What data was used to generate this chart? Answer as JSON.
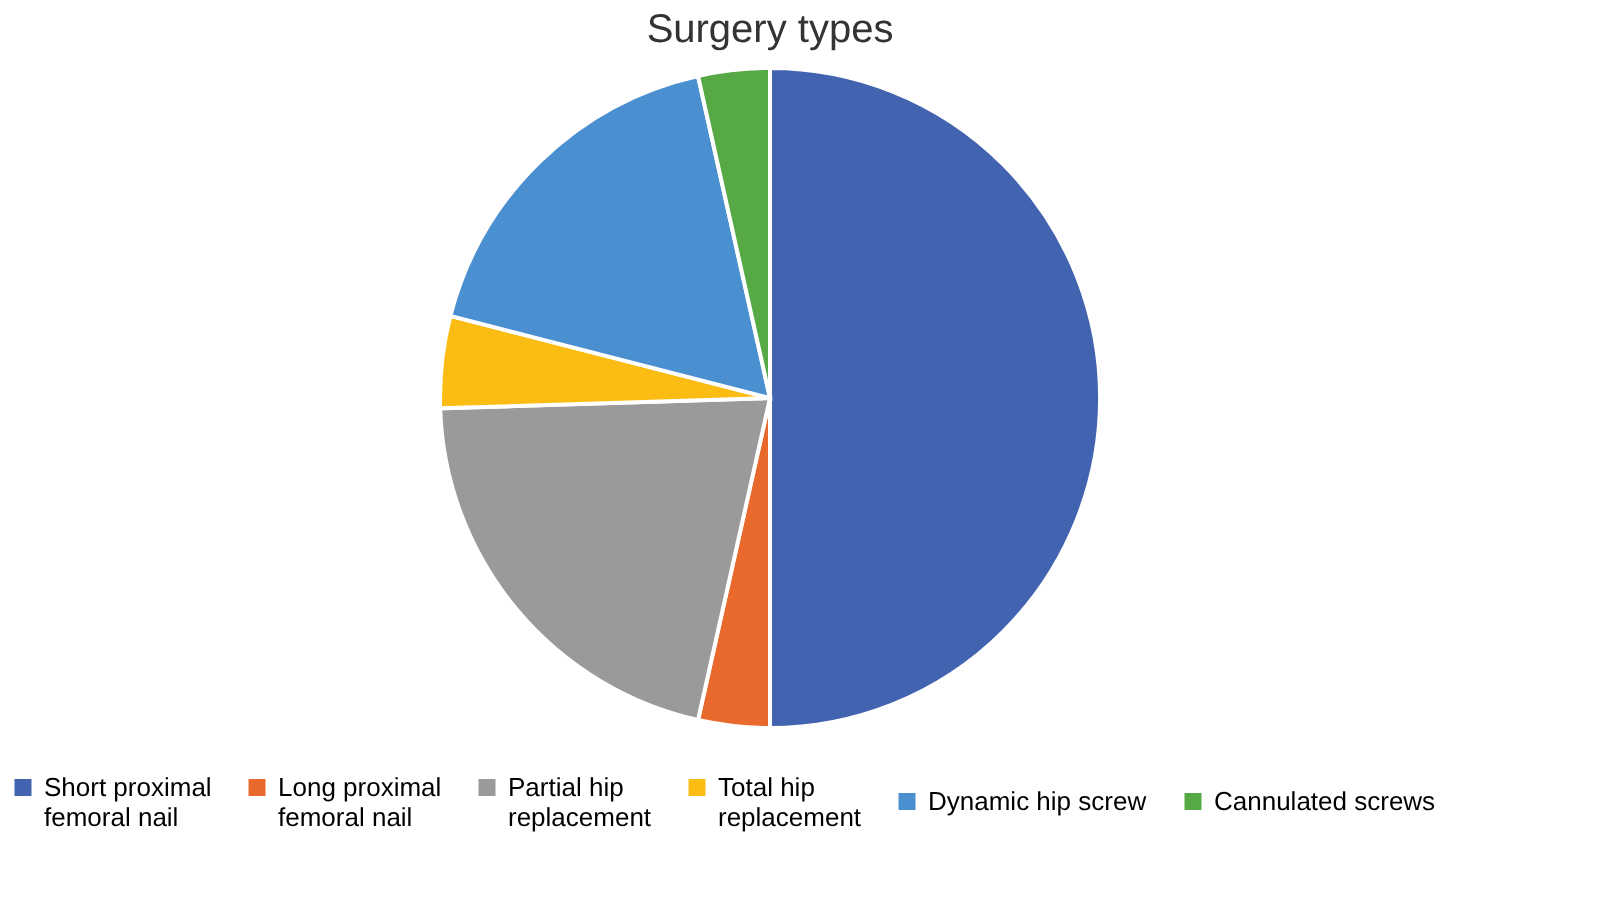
{
  "chart_data": {
    "type": "pie",
    "title": "Surgery types",
    "categories": [
      "Short proximal femoral nail",
      "Long proximal femoral nail",
      "Partial hip replacement",
      "Total hip replacement",
      "Dynamic hip screw",
      "Cannulated screws"
    ],
    "values": [
      50,
      3.5,
      21,
      4.5,
      17.5,
      3.5
    ],
    "colors": [
      "#4264b0",
      "#e8692b",
      "#9a9a9a",
      "#fbbd14",
      "#4a8fd0",
      "#57a946"
    ],
    "legend": "bottom"
  }
}
